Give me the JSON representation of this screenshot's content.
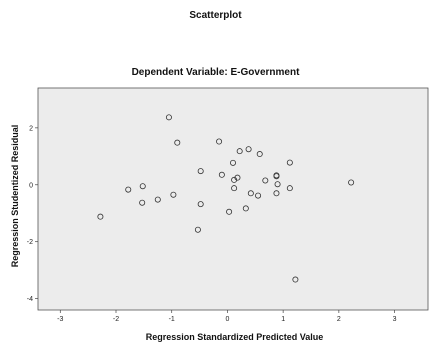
{
  "chart_data": {
    "type": "scatter",
    "title": "Scatterplot",
    "subtitle": "Dependent Variable: E-Government",
    "xlabel": "Regression Standardized Predicted Value",
    "ylabel": "Regression Studentized Residual",
    "xlim": [
      -3.4,
      3.6
    ],
    "ylim": [
      -4.4,
      3.4
    ],
    "xticks": [
      -3,
      -2,
      -1,
      0,
      1,
      2,
      3
    ],
    "yticks": [
      -4,
      -2,
      0,
      2
    ],
    "grid": false,
    "background": "#ececec",
    "points": [
      {
        "x": -2.28,
        "y": -1.12
      },
      {
        "x": -1.78,
        "y": -0.17
      },
      {
        "x": -1.52,
        "y": -0.05
      },
      {
        "x": -1.53,
        "y": -0.63
      },
      {
        "x": -1.25,
        "y": -0.52
      },
      {
        "x": -1.05,
        "y": 2.37
      },
      {
        "x": -0.97,
        "y": -0.35
      },
      {
        "x": -0.9,
        "y": 1.48
      },
      {
        "x": -0.48,
        "y": 0.48
      },
      {
        "x": -0.48,
        "y": -0.68
      },
      {
        "x": -0.53,
        "y": -1.58
      },
      {
        "x": -0.15,
        "y": 1.52
      },
      {
        "x": -0.1,
        "y": 0.35
      },
      {
        "x": 0.03,
        "y": -0.95
      },
      {
        "x": 0.1,
        "y": 0.77
      },
      {
        "x": 0.12,
        "y": 0.17
      },
      {
        "x": 0.12,
        "y": -0.12
      },
      {
        "x": 0.18,
        "y": 0.25
      },
      {
        "x": 0.22,
        "y": 1.18
      },
      {
        "x": 0.38,
        "y": 1.25
      },
      {
        "x": 0.33,
        "y": -0.83
      },
      {
        "x": 0.42,
        "y": -0.3
      },
      {
        "x": 0.58,
        "y": 1.08
      },
      {
        "x": 0.55,
        "y": -0.38
      },
      {
        "x": 0.68,
        "y": 0.15
      },
      {
        "x": 0.88,
        "y": 0.33
      },
      {
        "x": 0.88,
        "y": 0.3
      },
      {
        "x": 0.9,
        "y": 0.02
      },
      {
        "x": 0.88,
        "y": -0.3
      },
      {
        "x": 1.12,
        "y": 0.78
      },
      {
        "x": 1.12,
        "y": -0.12
      },
      {
        "x": 1.22,
        "y": -3.33
      },
      {
        "x": 2.22,
        "y": 0.08
      }
    ]
  }
}
